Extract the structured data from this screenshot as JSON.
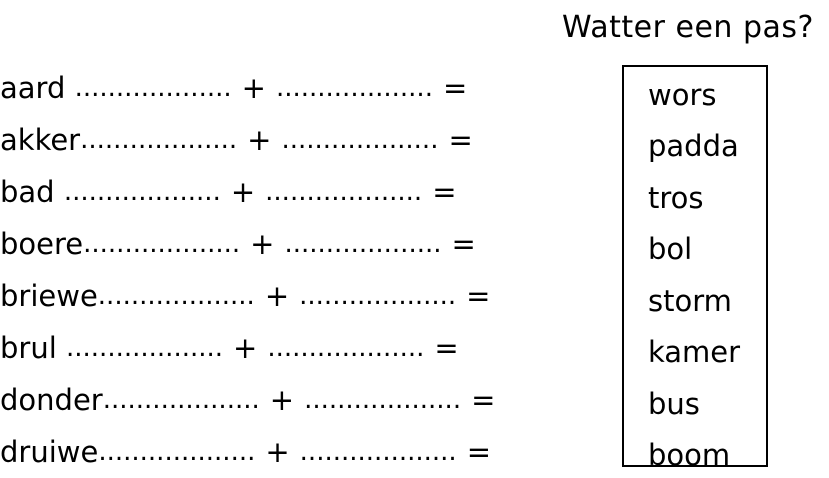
{
  "heading": "Watter een pas?",
  "dots": "...................",
  "plus": "+",
  "equals": "=",
  "compounds": [
    {
      "word": "aard",
      "pad": " "
    },
    {
      "word": "akker",
      "pad": ""
    },
    {
      "word": "bad",
      "pad": " "
    },
    {
      "word": "boere",
      "pad": ""
    },
    {
      "word": "briewe",
      "pad": ""
    },
    {
      "word": "brul",
      "pad": " "
    },
    {
      "word": "donder",
      "pad": ""
    },
    {
      "word": "druiwe",
      "pad": ""
    }
  ],
  "word_box": [
    "wors",
    "padda",
    "tros",
    "bol",
    "storm",
    "kamer",
    "bus",
    "boom"
  ]
}
